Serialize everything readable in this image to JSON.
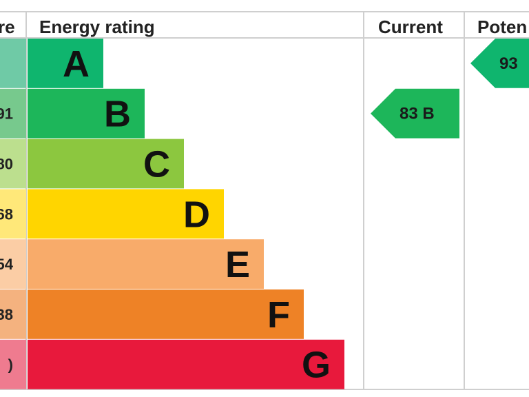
{
  "chart_data": {
    "type": "bar",
    "headers": {
      "score": "re",
      "rating": "Energy rating",
      "current": "Current",
      "potential": "Poten"
    },
    "categories": [
      "A",
      "B",
      "C",
      "D",
      "E",
      "F",
      "G"
    ],
    "score_labels": [
      "",
      "91",
      "80",
      "68",
      "54",
      "38",
      ")"
    ],
    "colors": [
      "#0fb56e",
      "#1db65a",
      "#8cc73f",
      "#ffd500",
      "#f8ab6a",
      "#ee8226",
      "#e8193c"
    ],
    "score_colors": [
      "#6fcaa6",
      "#77c98d",
      "#bcdf8e",
      "#ffe879",
      "#fbcda5",
      "#f4b27f",
      "#ef7b8f"
    ],
    "current": {
      "value": 83,
      "band": "B",
      "label": "83  B",
      "color": "#1db65a"
    },
    "potential": {
      "value": 93,
      "band": "A",
      "label": "93",
      "color": "#0fb56e"
    }
  }
}
